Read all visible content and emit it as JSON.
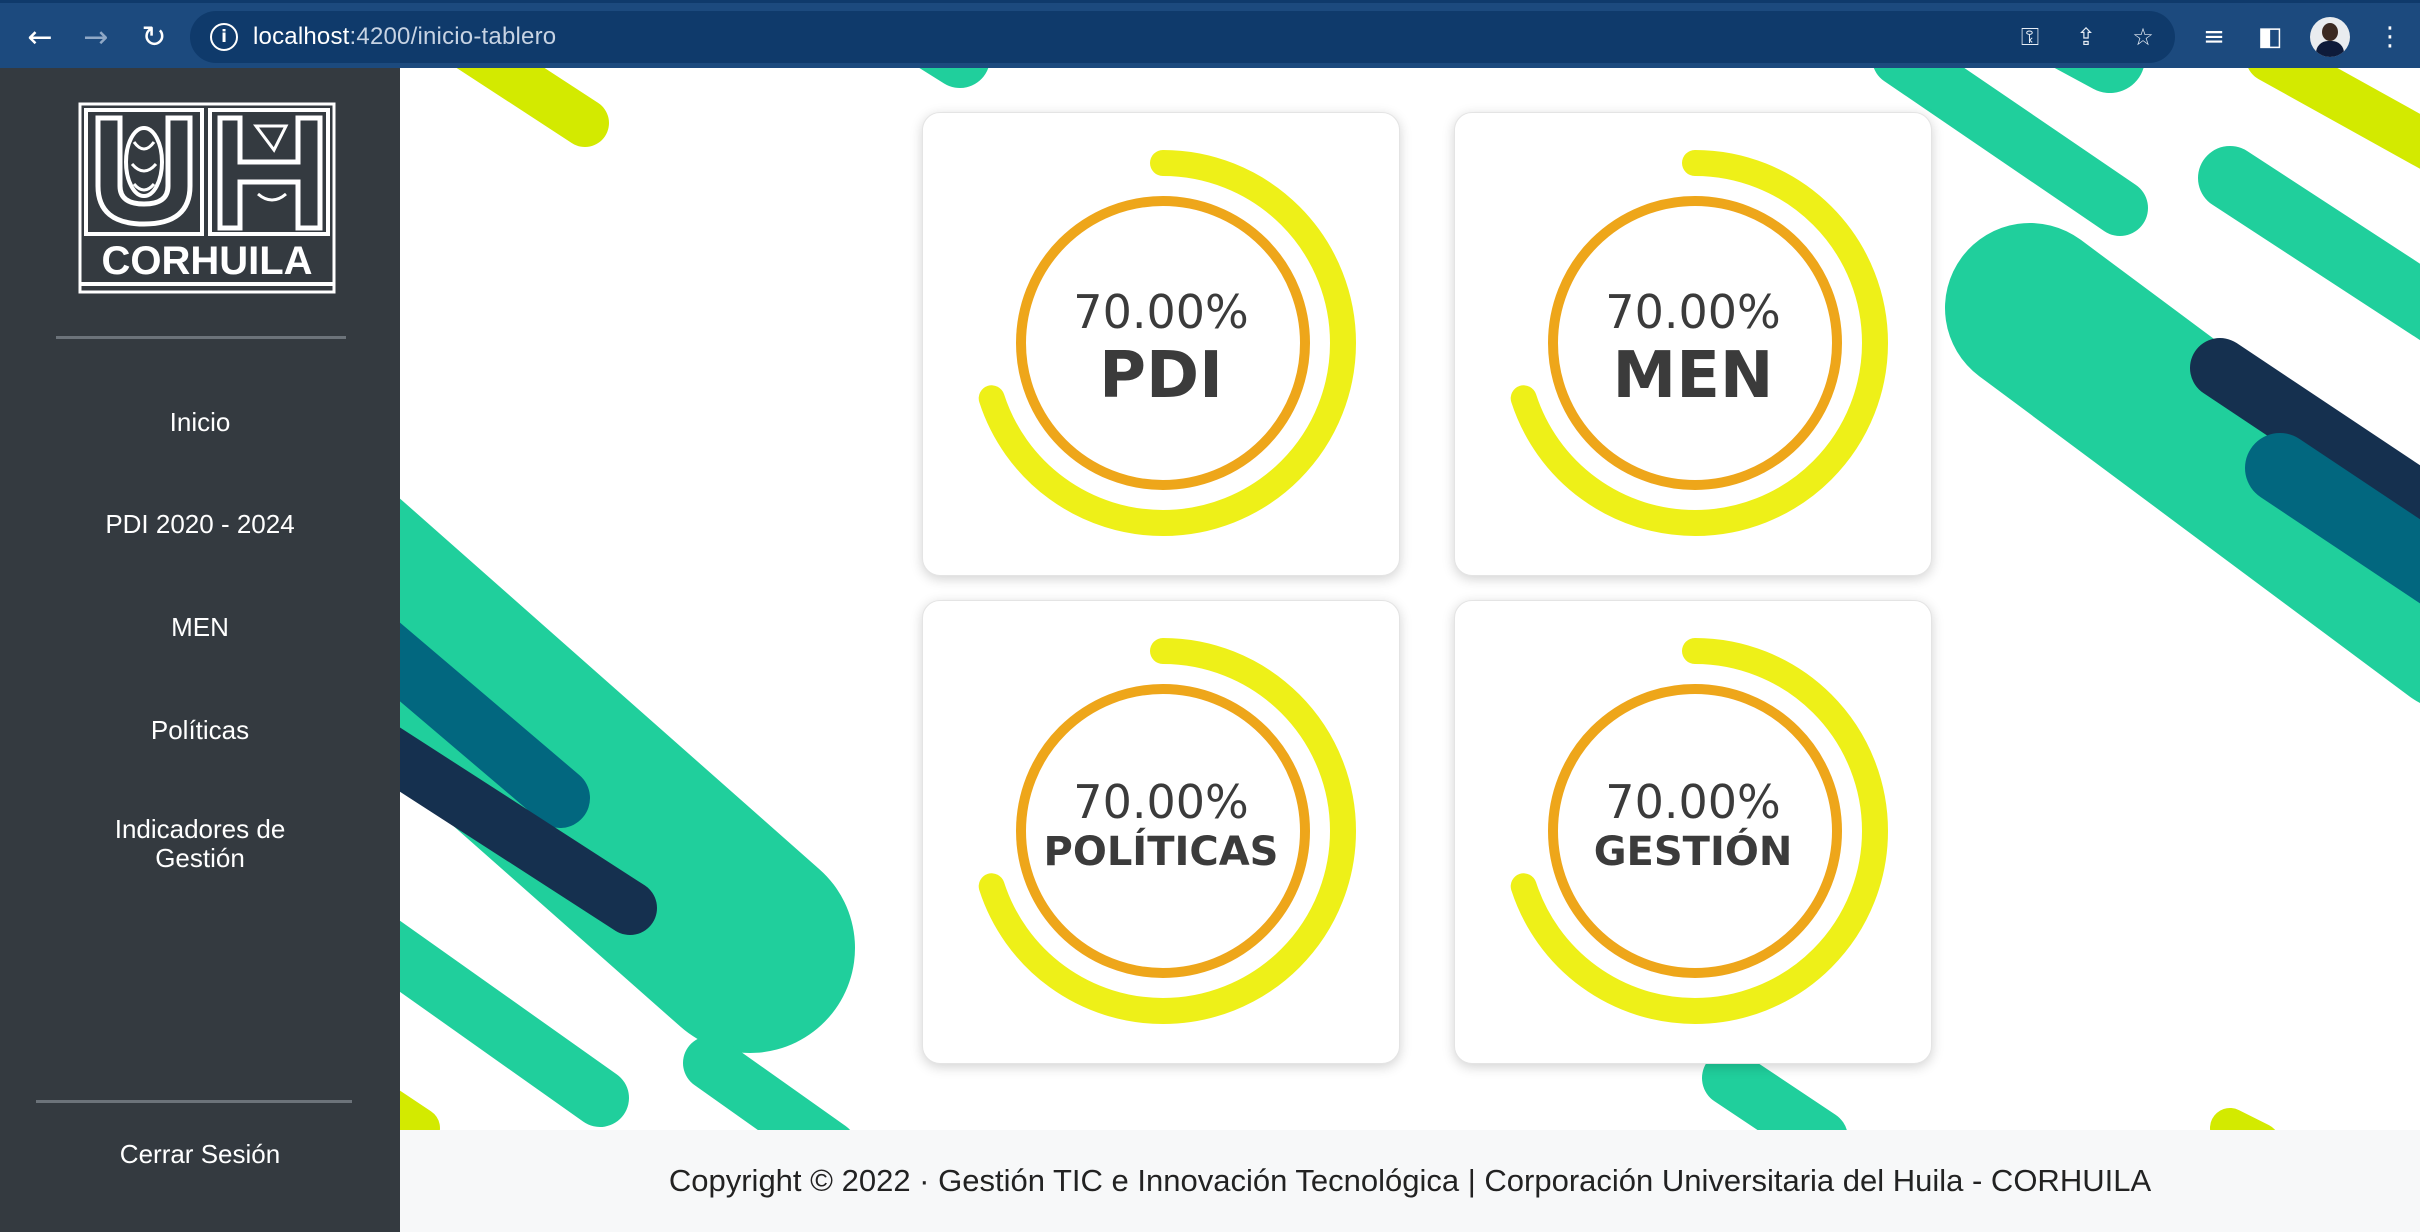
{
  "browser": {
    "url_host": "localhost",
    "url_path": ":4200/inicio-tablero",
    "back_icon": "arrow-left-icon",
    "forward_icon": "arrow-right-icon",
    "reload_icon": "reload-icon"
  },
  "sidebar": {
    "logo_text": "CORHUILA",
    "items": [
      {
        "label": "Inicio"
      },
      {
        "label": "PDI 2020 - 2024"
      },
      {
        "label": "MEN"
      },
      {
        "label": "Políticas"
      },
      {
        "label_line1": "Indicadores de",
        "label_line2": "Gestión"
      }
    ],
    "logout": "Cerrar Sesión"
  },
  "dashboard": {
    "colors": {
      "outer_ring": "#eef018",
      "inner_ring": "#eea61a",
      "teal": "#20cf9c",
      "navy": "#15304f",
      "petrol": "#02677f",
      "lime": "#d3ea00"
    },
    "cards": [
      {
        "percent": "70.00%",
        "label": "PDI",
        "progress": 0.7
      },
      {
        "percent": "70.00%",
        "label": "MEN",
        "progress": 0.7
      },
      {
        "percent": "70.00%",
        "label": "POLÍTICAS",
        "progress": 0.7
      },
      {
        "percent": "70.00%",
        "label": "GESTIÓN",
        "progress": 0.7
      }
    ]
  },
  "footer": {
    "text": "Copyright © 2022 · Gestión TIC e Innovación Tecnológica | Corporación Universitaria del Huila - CORHUILA"
  }
}
